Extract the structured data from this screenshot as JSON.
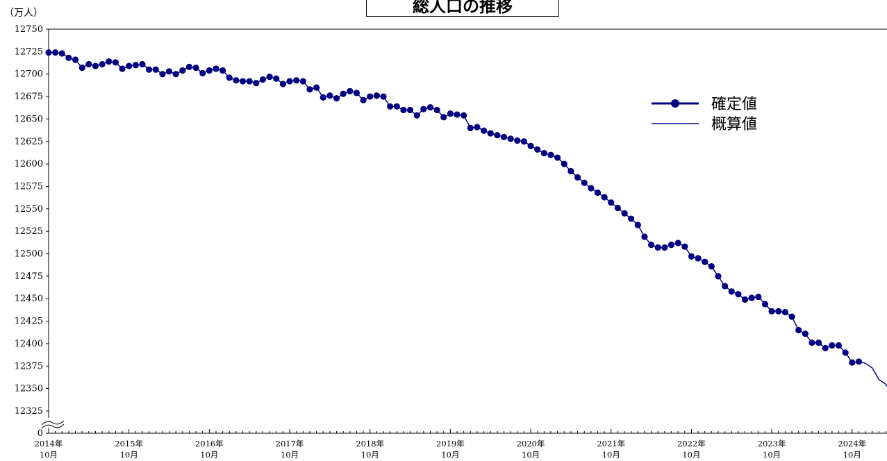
{
  "chart_data": {
    "type": "line",
    "title": "総人口の推移",
    "unit_label": "（万人）",
    "y_ticks": [
      "12750",
      "12725",
      "12700",
      "12675",
      "12650",
      "12625",
      "12600",
      "12575",
      "12550",
      "12525",
      "12500",
      "12475",
      "12450",
      "12425",
      "12400",
      "12375",
      "12350",
      "12325",
      "0"
    ],
    "y_axis_break": true,
    "x_tick_labels": [
      {
        "year": "2014年",
        "month": "10月"
      },
      {
        "year": "2015年",
        "month": "10月"
      },
      {
        "year": "2016年",
        "month": "10月"
      },
      {
        "year": "2017年",
        "month": "10月"
      },
      {
        "year": "2018年",
        "month": "10月"
      },
      {
        "year": "2019年",
        "month": "10月"
      },
      {
        "year": "2020年",
        "month": "10月"
      },
      {
        "year": "2021年",
        "month": "10月"
      },
      {
        "year": "2022年",
        "month": "10月"
      },
      {
        "year": "2023年",
        "month": "10月"
      },
      {
        "year": "2024年",
        "month": "10月"
      }
    ],
    "x_start": "2014-10",
    "series": [
      {
        "name": "確定値",
        "marker": "circle",
        "color": "#000080",
        "values": [
          12724,
          12724,
          12723,
          12718,
          12716,
          12707,
          12711,
          12709,
          12711,
          12714,
          12713,
          12706,
          12709,
          12710,
          12711,
          12705,
          12705,
          12700,
          12703,
          12700,
          12704,
          12708,
          12707,
          12701,
          12704,
          12706,
          12704,
          12696,
          12693,
          12692,
          12692,
          12690,
          12694,
          12697,
          12695,
          12689,
          12692,
          12693,
          12692,
          12683,
          12685,
          12674,
          12676,
          12673,
          12678,
          12681,
          12679,
          12671,
          12675,
          12676,
          12675,
          12664,
          12664,
          12660,
          12660,
          12654,
          12661,
          12663,
          12660,
          12652,
          12656,
          12655,
          12654,
          12640,
          12641,
          12637,
          12634,
          12632,
          12630,
          12628,
          12626,
          12625,
          12620,
          12616,
          12612,
          12610,
          12607,
          12600,
          12592,
          12585,
          12579,
          12573,
          12568,
          12563,
          12557,
          12551,
          12545,
          12539,
          12532,
          12519,
          12510,
          12507,
          12507,
          12510,
          12512,
          12508,
          12497,
          12495,
          12491,
          12486,
          12475,
          12464,
          12458,
          12455,
          12449,
          12451,
          12452,
          12444,
          12436,
          12436,
          12435,
          12430,
          12415,
          12411,
          12401,
          12401,
          12395,
          12398,
          12398,
          12390,
          12379,
          12380
        ]
      },
      {
        "name": "概算値",
        "color": "#000080",
        "values": [
          12380,
          12378,
          12373,
          12360,
          12355,
          12344
        ]
      }
    ],
    "ylim": [
      12325,
      12750
    ],
    "grid": false,
    "legend_position": "right"
  }
}
